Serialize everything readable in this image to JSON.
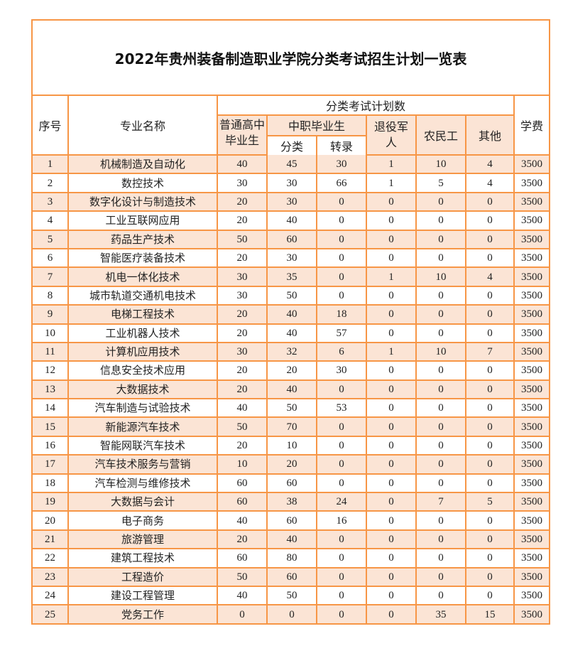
{
  "title": "2022年贵州装备制造职业学院分类考试招生计划一览表",
  "headers": {
    "index": "序号",
    "major": "专业名称",
    "plan_group": "分类考试计划数",
    "high_school": "普通高中毕业生",
    "vocational": "中职毕业生",
    "voc_classified": "分类",
    "voc_transfer": "转录",
    "veterans": "退役军人",
    "migrant_workers": "农民工",
    "other": "其他",
    "tuition": "学费"
  },
  "colors": {
    "border": "#f79646",
    "row_shade": "#fbe4d5"
  },
  "rows": [
    [
      "1",
      "机械制造及自动化",
      "40",
      "45",
      "30",
      "1",
      "10",
      "4",
      "3500"
    ],
    [
      "2",
      "数控技术",
      "30",
      "30",
      "66",
      "1",
      "5",
      "4",
      "3500"
    ],
    [
      "3",
      "数字化设计与制造技术",
      "20",
      "30",
      "0",
      "0",
      "0",
      "0",
      "3500"
    ],
    [
      "4",
      "工业互联网应用",
      "20",
      "40",
      "0",
      "0",
      "0",
      "0",
      "3500"
    ],
    [
      "5",
      "药品生产技术",
      "50",
      "60",
      "0",
      "0",
      "0",
      "0",
      "3500"
    ],
    [
      "6",
      "智能医疗装备技术",
      "20",
      "30",
      "0",
      "0",
      "0",
      "0",
      "3500"
    ],
    [
      "7",
      "机电一体化技术",
      "30",
      "35",
      "0",
      "1",
      "10",
      "4",
      "3500"
    ],
    [
      "8",
      "城市轨道交通机电技术",
      "30",
      "50",
      "0",
      "0",
      "0",
      "0",
      "3500"
    ],
    [
      "9",
      "电梯工程技术",
      "20",
      "40",
      "18",
      "0",
      "0",
      "0",
      "3500"
    ],
    [
      "10",
      "工业机器人技术",
      "20",
      "40",
      "57",
      "0",
      "0",
      "0",
      "3500"
    ],
    [
      "11",
      "计算机应用技术",
      "30",
      "32",
      "6",
      "1",
      "10",
      "7",
      "3500"
    ],
    [
      "12",
      "信息安全技术应用",
      "20",
      "20",
      "30",
      "0",
      "0",
      "0",
      "3500"
    ],
    [
      "13",
      "大数据技术",
      "20",
      "40",
      "0",
      "0",
      "0",
      "0",
      "3500"
    ],
    [
      "14",
      "汽车制造与试验技术",
      "40",
      "50",
      "53",
      "0",
      "0",
      "0",
      "3500"
    ],
    [
      "15",
      "新能源汽车技术",
      "50",
      "70",
      "0",
      "0",
      "0",
      "0",
      "3500"
    ],
    [
      "16",
      "智能网联汽车技术",
      "20",
      "10",
      "0",
      "0",
      "0",
      "0",
      "3500"
    ],
    [
      "17",
      "汽车技术服务与营销",
      "10",
      "20",
      "0",
      "0",
      "0",
      "0",
      "3500"
    ],
    [
      "18",
      "汽车检测与维修技术",
      "60",
      "60",
      "0",
      "0",
      "0",
      "0",
      "3500"
    ],
    [
      "19",
      "大数据与会计",
      "60",
      "38",
      "24",
      "0",
      "7",
      "5",
      "3500"
    ],
    [
      "20",
      "电子商务",
      "40",
      "60",
      "16",
      "0",
      "0",
      "0",
      "3500"
    ],
    [
      "21",
      "旅游管理",
      "20",
      "40",
      "0",
      "0",
      "0",
      "0",
      "3500"
    ],
    [
      "22",
      "建筑工程技术",
      "60",
      "80",
      "0",
      "0",
      "0",
      "0",
      "3500"
    ],
    [
      "23",
      "工程造价",
      "50",
      "60",
      "0",
      "0",
      "0",
      "0",
      "3500"
    ],
    [
      "24",
      "建设工程管理",
      "40",
      "50",
      "0",
      "0",
      "0",
      "0",
      "3500"
    ],
    [
      "25",
      "党务工作",
      "0",
      "0",
      "0",
      "0",
      "35",
      "15",
      "3500"
    ]
  ]
}
